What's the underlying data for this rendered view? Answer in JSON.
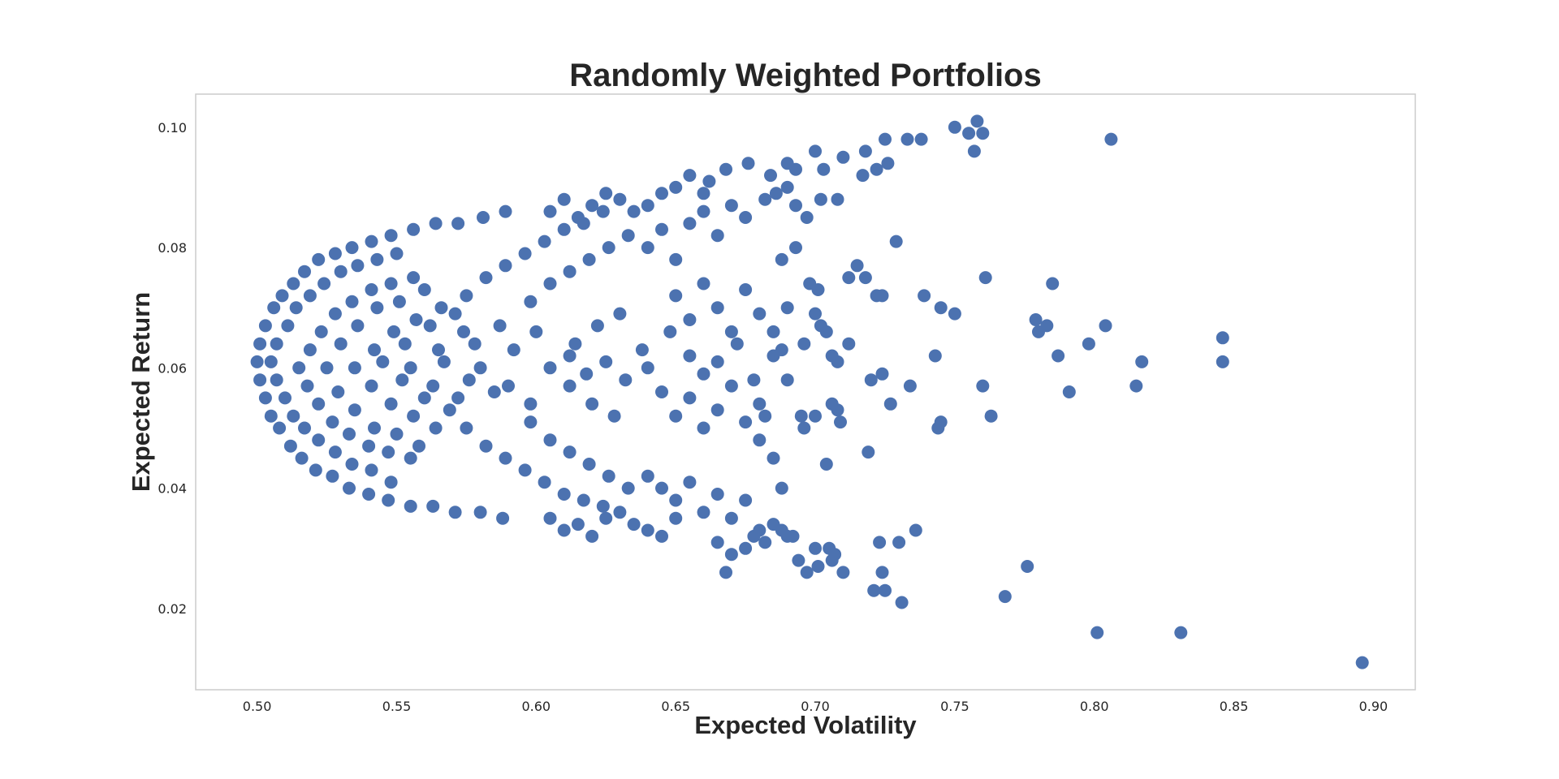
{
  "chart_data": {
    "type": "scatter",
    "title": "Randomly Weighted Portfolios",
    "xlabel": "Expected Volatility",
    "ylabel": "Expected Return",
    "xlim": [
      0.478,
      0.915
    ],
    "ylim": [
      0.0065,
      0.1055
    ],
    "grid": false,
    "legend": "none",
    "marker_color": "#4c72b0",
    "x_ticks": [
      {
        "value": 0.5,
        "label": "0.50"
      },
      {
        "value": 0.55,
        "label": "0.55"
      },
      {
        "value": 0.6,
        "label": "0.60"
      },
      {
        "value": 0.65,
        "label": "0.65"
      },
      {
        "value": 0.7,
        "label": "0.70"
      },
      {
        "value": 0.75,
        "label": "0.75"
      },
      {
        "value": 0.8,
        "label": "0.80"
      },
      {
        "value": 0.85,
        "label": "0.85"
      },
      {
        "value": 0.9,
        "label": "0.90"
      }
    ],
    "y_ticks": [
      {
        "value": 0.02,
        "label": "0.02"
      },
      {
        "value": 0.04,
        "label": "0.04"
      },
      {
        "value": 0.06,
        "label": "0.06"
      },
      {
        "value": 0.08,
        "label": "0.08"
      },
      {
        "value": 0.1,
        "label": "0.10"
      }
    ],
    "points": [
      [
        0.5,
        0.061
      ],
      [
        0.501,
        0.058
      ],
      [
        0.501,
        0.064
      ],
      [
        0.503,
        0.055
      ],
      [
        0.503,
        0.067
      ],
      [
        0.505,
        0.052
      ],
      [
        0.506,
        0.07
      ],
      [
        0.508,
        0.05
      ],
      [
        0.509,
        0.072
      ],
      [
        0.512,
        0.047
      ],
      [
        0.513,
        0.074
      ],
      [
        0.516,
        0.045
      ],
      [
        0.517,
        0.076
      ],
      [
        0.521,
        0.043
      ],
      [
        0.522,
        0.078
      ],
      [
        0.527,
        0.042
      ],
      [
        0.528,
        0.079
      ],
      [
        0.533,
        0.04
      ],
      [
        0.534,
        0.08
      ],
      [
        0.54,
        0.039
      ],
      [
        0.541,
        0.081
      ],
      [
        0.547,
        0.038
      ],
      [
        0.548,
        0.082
      ],
      [
        0.555,
        0.037
      ],
      [
        0.556,
        0.083
      ],
      [
        0.563,
        0.037
      ],
      [
        0.564,
        0.084
      ],
      [
        0.571,
        0.036
      ],
      [
        0.572,
        0.084
      ],
      [
        0.58,
        0.036
      ],
      [
        0.581,
        0.085
      ],
      [
        0.588,
        0.035
      ],
      [
        0.589,
        0.086
      ],
      [
        0.505,
        0.061
      ],
      [
        0.507,
        0.058
      ],
      [
        0.507,
        0.064
      ],
      [
        0.51,
        0.055
      ],
      [
        0.511,
        0.067
      ],
      [
        0.513,
        0.052
      ],
      [
        0.514,
        0.07
      ],
      [
        0.517,
        0.05
      ],
      [
        0.519,
        0.072
      ],
      [
        0.522,
        0.048
      ],
      [
        0.524,
        0.074
      ],
      [
        0.528,
        0.046
      ],
      [
        0.53,
        0.076
      ],
      [
        0.534,
        0.044
      ],
      [
        0.536,
        0.077
      ],
      [
        0.541,
        0.043
      ],
      [
        0.543,
        0.078
      ],
      [
        0.548,
        0.041
      ],
      [
        0.55,
        0.079
      ],
      [
        0.515,
        0.06
      ],
      [
        0.518,
        0.057
      ],
      [
        0.519,
        0.063
      ],
      [
        0.522,
        0.054
      ],
      [
        0.523,
        0.066
      ],
      [
        0.527,
        0.051
      ],
      [
        0.528,
        0.069
      ],
      [
        0.533,
        0.049
      ],
      [
        0.534,
        0.071
      ],
      [
        0.54,
        0.047
      ],
      [
        0.541,
        0.073
      ],
      [
        0.547,
        0.046
      ],
      [
        0.548,
        0.074
      ],
      [
        0.555,
        0.045
      ],
      [
        0.556,
        0.075
      ],
      [
        0.525,
        0.06
      ],
      [
        0.529,
        0.056
      ],
      [
        0.53,
        0.064
      ],
      [
        0.535,
        0.053
      ],
      [
        0.536,
        0.067
      ],
      [
        0.542,
        0.05
      ],
      [
        0.543,
        0.07
      ],
      [
        0.55,
        0.049
      ],
      [
        0.551,
        0.071
      ],
      [
        0.558,
        0.047
      ],
      [
        0.56,
        0.073
      ],
      [
        0.535,
        0.06
      ],
      [
        0.541,
        0.057
      ],
      [
        0.542,
        0.063
      ],
      [
        0.548,
        0.054
      ],
      [
        0.549,
        0.066
      ],
      [
        0.556,
        0.052
      ],
      [
        0.557,
        0.068
      ],
      [
        0.564,
        0.05
      ],
      [
        0.566,
        0.07
      ],
      [
        0.545,
        0.061
      ],
      [
        0.552,
        0.058
      ],
      [
        0.553,
        0.064
      ],
      [
        0.56,
        0.055
      ],
      [
        0.562,
        0.067
      ],
      [
        0.569,
        0.053
      ],
      [
        0.571,
        0.069
      ],
      [
        0.555,
        0.06
      ],
      [
        0.563,
        0.057
      ],
      [
        0.565,
        0.063
      ],
      [
        0.572,
        0.055
      ],
      [
        0.574,
        0.066
      ],
      [
        0.567,
        0.061
      ],
      [
        0.576,
        0.058
      ],
      [
        0.578,
        0.064
      ],
      [
        0.585,
        0.056
      ],
      [
        0.587,
        0.067
      ],
      [
        0.58,
        0.06
      ],
      [
        0.59,
        0.057
      ],
      [
        0.592,
        0.063
      ],
      [
        0.598,
        0.054
      ],
      [
        0.6,
        0.066
      ],
      [
        0.575,
        0.05
      ],
      [
        0.582,
        0.047
      ],
      [
        0.589,
        0.045
      ],
      [
        0.596,
        0.043
      ],
      [
        0.603,
        0.041
      ],
      [
        0.61,
        0.039
      ],
      [
        0.617,
        0.038
      ],
      [
        0.624,
        0.037
      ],
      [
        0.575,
        0.072
      ],
      [
        0.582,
        0.075
      ],
      [
        0.589,
        0.077
      ],
      [
        0.596,
        0.079
      ],
      [
        0.603,
        0.081
      ],
      [
        0.61,
        0.083
      ],
      [
        0.617,
        0.084
      ],
      [
        0.624,
        0.086
      ],
      [
        0.598,
        0.051
      ],
      [
        0.605,
        0.048
      ],
      [
        0.612,
        0.046
      ],
      [
        0.619,
        0.044
      ],
      [
        0.626,
        0.042
      ],
      [
        0.633,
        0.04
      ],
      [
        0.598,
        0.071
      ],
      [
        0.605,
        0.074
      ],
      [
        0.612,
        0.076
      ],
      [
        0.619,
        0.078
      ],
      [
        0.626,
        0.08
      ],
      [
        0.633,
        0.082
      ],
      [
        0.605,
        0.06
      ],
      [
        0.612,
        0.057
      ],
      [
        0.614,
        0.064
      ],
      [
        0.62,
        0.054
      ],
      [
        0.622,
        0.067
      ],
      [
        0.628,
        0.052
      ],
      [
        0.63,
        0.069
      ],
      [
        0.612,
        0.062
      ],
      [
        0.618,
        0.059
      ],
      [
        0.625,
        0.061
      ],
      [
        0.632,
        0.058
      ],
      [
        0.638,
        0.063
      ],
      [
        0.64,
        0.06
      ],
      [
        0.645,
        0.056
      ],
      [
        0.648,
        0.066
      ],
      [
        0.605,
        0.086
      ],
      [
        0.61,
        0.088
      ],
      [
        0.615,
        0.085
      ],
      [
        0.62,
        0.087
      ],
      [
        0.625,
        0.089
      ],
      [
        0.63,
        0.088
      ],
      [
        0.635,
        0.086
      ],
      [
        0.64,
        0.087
      ],
      [
        0.645,
        0.089
      ],
      [
        0.65,
        0.09
      ],
      [
        0.655,
        0.092
      ],
      [
        0.66,
        0.089
      ],
      [
        0.605,
        0.035
      ],
      [
        0.61,
        0.033
      ],
      [
        0.615,
        0.034
      ],
      [
        0.62,
        0.032
      ],
      [
        0.625,
        0.035
      ],
      [
        0.63,
        0.036
      ],
      [
        0.635,
        0.034
      ],
      [
        0.64,
        0.033
      ],
      [
        0.645,
        0.032
      ],
      [
        0.65,
        0.035
      ],
      [
        0.64,
        0.08
      ],
      [
        0.645,
        0.083
      ],
      [
        0.65,
        0.078
      ],
      [
        0.655,
        0.084
      ],
      [
        0.66,
        0.086
      ],
      [
        0.665,
        0.082
      ],
      [
        0.67,
        0.087
      ],
      [
        0.675,
        0.085
      ],
      [
        0.64,
        0.042
      ],
      [
        0.645,
        0.04
      ],
      [
        0.65,
        0.038
      ],
      [
        0.655,
        0.041
      ],
      [
        0.66,
        0.036
      ],
      [
        0.665,
        0.039
      ],
      [
        0.67,
        0.035
      ],
      [
        0.675,
        0.038
      ],
      [
        0.65,
        0.072
      ],
      [
        0.655,
        0.068
      ],
      [
        0.66,
        0.074
      ],
      [
        0.665,
        0.07
      ],
      [
        0.67,
        0.066
      ],
      [
        0.675,
        0.073
      ],
      [
        0.68,
        0.069
      ],
      [
        0.65,
        0.052
      ],
      [
        0.655,
        0.055
      ],
      [
        0.66,
        0.05
      ],
      [
        0.665,
        0.053
      ],
      [
        0.67,
        0.057
      ],
      [
        0.675,
        0.051
      ],
      [
        0.68,
        0.054
      ],
      [
        0.655,
        0.062
      ],
      [
        0.66,
        0.059
      ],
      [
        0.665,
        0.061
      ],
      [
        0.672,
        0.064
      ],
      [
        0.678,
        0.058
      ],
      [
        0.685,
        0.062
      ],
      [
        0.662,
        0.091
      ],
      [
        0.668,
        0.093
      ],
      [
        0.676,
        0.094
      ],
      [
        0.684,
        0.092
      ],
      [
        0.69,
        0.094
      ],
      [
        0.693,
        0.093
      ],
      [
        0.665,
        0.031
      ],
      [
        0.67,
        0.029
      ],
      [
        0.675,
        0.03
      ],
      [
        0.68,
        0.033
      ],
      [
        0.685,
        0.034
      ],
      [
        0.69,
        0.032
      ],
      [
        0.668,
        0.026
      ],
      [
        0.697,
        0.026
      ],
      [
        0.7,
        0.096
      ],
      [
        0.71,
        0.095
      ],
      [
        0.718,
        0.096
      ],
      [
        0.725,
        0.098
      ],
      [
        0.733,
        0.098
      ],
      [
        0.738,
        0.098
      ],
      [
        0.75,
        0.1
      ],
      [
        0.755,
        0.099
      ],
      [
        0.758,
        0.101
      ],
      [
        0.76,
        0.099
      ],
      [
        0.757,
        0.096
      ],
      [
        0.806,
        0.098
      ],
      [
        0.717,
        0.092
      ],
      [
        0.722,
        0.093
      ],
      [
        0.726,
        0.094
      ],
      [
        0.708,
        0.088
      ],
      [
        0.703,
        0.093
      ],
      [
        0.715,
        0.077
      ],
      [
        0.712,
        0.075
      ],
      [
        0.718,
        0.075
      ],
      [
        0.722,
        0.072
      ],
      [
        0.724,
        0.072
      ],
      [
        0.729,
        0.081
      ],
      [
        0.739,
        0.072
      ],
      [
        0.745,
        0.07
      ],
      [
        0.75,
        0.069
      ],
      [
        0.761,
        0.075
      ],
      [
        0.785,
        0.074
      ],
      [
        0.779,
        0.068
      ],
      [
        0.783,
        0.067
      ],
      [
        0.78,
        0.066
      ],
      [
        0.7,
        0.069
      ],
      [
        0.704,
        0.066
      ],
      [
        0.706,
        0.062
      ],
      [
        0.708,
        0.061
      ],
      [
        0.712,
        0.064
      ],
      [
        0.696,
        0.064
      ],
      [
        0.702,
        0.067
      ],
      [
        0.743,
        0.062
      ],
      [
        0.787,
        0.062
      ],
      [
        0.798,
        0.064
      ],
      [
        0.804,
        0.067
      ],
      [
        0.817,
        0.061
      ],
      [
        0.846,
        0.065
      ],
      [
        0.846,
        0.061
      ],
      [
        0.72,
        0.058
      ],
      [
        0.724,
        0.059
      ],
      [
        0.734,
        0.057
      ],
      [
        0.727,
        0.054
      ],
      [
        0.76,
        0.057
      ],
      [
        0.791,
        0.056
      ],
      [
        0.815,
        0.057
      ],
      [
        0.706,
        0.054
      ],
      [
        0.708,
        0.053
      ],
      [
        0.709,
        0.051
      ],
      [
        0.7,
        0.052
      ],
      [
        0.744,
        0.05
      ],
      [
        0.745,
        0.051
      ],
      [
        0.763,
        0.052
      ],
      [
        0.719,
        0.046
      ],
      [
        0.704,
        0.044
      ],
      [
        0.7,
        0.03
      ],
      [
        0.705,
        0.03
      ],
      [
        0.707,
        0.029
      ],
      [
        0.706,
        0.028
      ],
      [
        0.701,
        0.027
      ],
      [
        0.71,
        0.026
      ],
      [
        0.723,
        0.031
      ],
      [
        0.73,
        0.031
      ],
      [
        0.736,
        0.033
      ],
      [
        0.721,
        0.023
      ],
      [
        0.725,
        0.023
      ],
      [
        0.724,
        0.026
      ],
      [
        0.731,
        0.021
      ],
      [
        0.768,
        0.022
      ],
      [
        0.776,
        0.027
      ],
      [
        0.801,
        0.016
      ],
      [
        0.831,
        0.016
      ],
      [
        0.896,
        0.011
      ],
      [
        0.688,
        0.078
      ],
      [
        0.693,
        0.08
      ],
      [
        0.698,
        0.074
      ],
      [
        0.701,
        0.073
      ],
      [
        0.69,
        0.07
      ],
      [
        0.685,
        0.066
      ],
      [
        0.69,
        0.058
      ],
      [
        0.688,
        0.063
      ],
      [
        0.696,
        0.05
      ],
      [
        0.695,
        0.052
      ],
      [
        0.682,
        0.052
      ],
      [
        0.68,
        0.048
      ],
      [
        0.685,
        0.045
      ],
      [
        0.688,
        0.04
      ],
      [
        0.693,
        0.087
      ],
      [
        0.697,
        0.085
      ],
      [
        0.702,
        0.088
      ],
      [
        0.686,
        0.089
      ],
      [
        0.69,
        0.09
      ],
      [
        0.682,
        0.088
      ],
      [
        0.688,
        0.033
      ],
      [
        0.694,
        0.028
      ],
      [
        0.692,
        0.032
      ],
      [
        0.682,
        0.031
      ],
      [
        0.678,
        0.032
      ]
    ]
  }
}
